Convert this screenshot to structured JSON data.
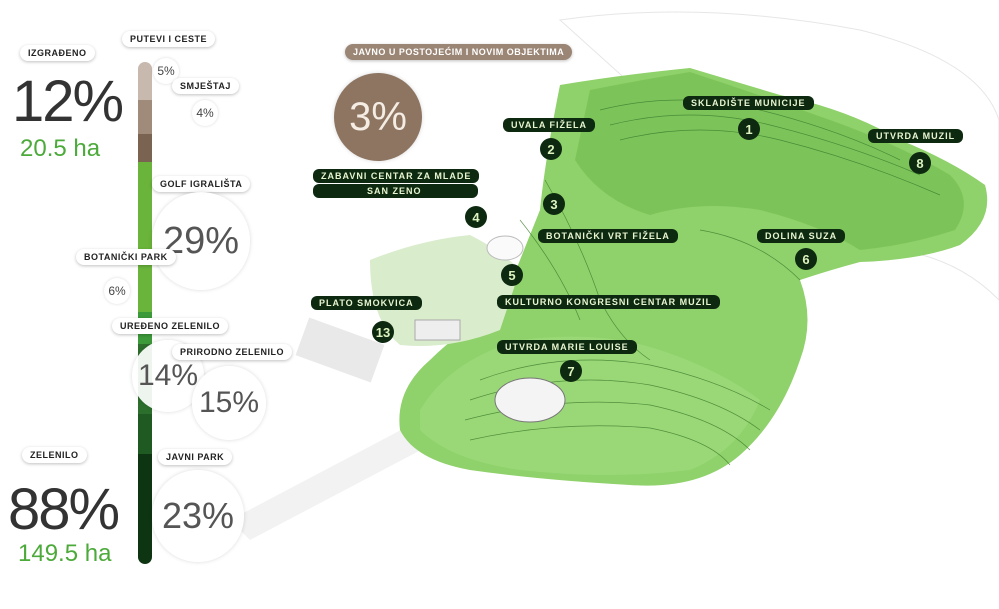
{
  "built": {
    "label": "IZGRAĐENO",
    "percent": "12%",
    "area": "20.5 ha",
    "roads_label": "PUTEVI I CESTE",
    "roads_pct": "5%",
    "accommodation_label": "SMJEŠTAJ",
    "accommodation_pct": "4%",
    "public_label": "JAVNO U POSTOJEĆIM I NOVIM OBJEKTIMA",
    "public_pct": "3%"
  },
  "green": {
    "label": "ZELENILO",
    "percent": "88%",
    "area": "149.5 ha",
    "golf_label": "GOLF IGRALIŠTA",
    "golf_pct": "29%",
    "botanic_label": "BOTANIČKI PARK",
    "botanic_pct": "6%",
    "landscaped_label": "UREĐENO ZELENILO",
    "landscaped_pct": "14%",
    "natural_label": "PRIRODNO ZELENILO",
    "natural_pct": "15%",
    "public_park_label": "JAVNI PARK",
    "public_park_pct": "23%"
  },
  "bar_colors": [
    "#c7b9ad",
    "#a08a79",
    "#7a6350",
    "#6ab43b",
    "#3d9a3a",
    "#2c6e2c",
    "#1f5a22",
    "#0e3512"
  ],
  "map_labels": [
    {
      "num": "1",
      "label": "SKLADIŠTE MUNICIJE"
    },
    {
      "num": "2",
      "label": "UVALA FIŽELA"
    },
    {
      "num": "3",
      "label": "ZABAVNI CENTAR ZA MLADE"
    },
    {
      "num": "4",
      "label": "SAN ZENO"
    },
    {
      "num": "5",
      "label": "BOTANIČKI VRT FIŽELA"
    },
    {
      "num": "6",
      "label": "DOLINA SUZA"
    },
    {
      "num": "7",
      "label": "UTVRDA MARIE LOUISE"
    },
    {
      "num": "8",
      "label": "UTVRDA MUZIL"
    },
    {
      "num": "13",
      "label": "PLATO SMOKVICA"
    },
    {
      "label": "KULTURNO KONGRESNI CENTAR MUZIL"
    }
  ]
}
